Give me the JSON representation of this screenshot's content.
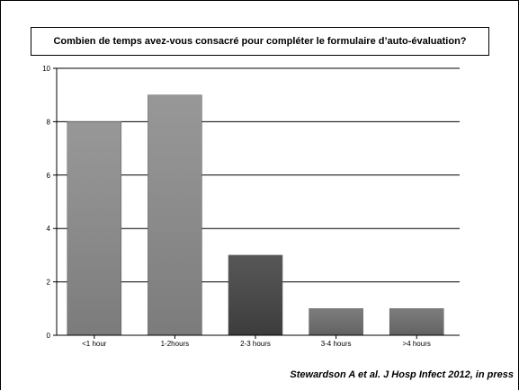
{
  "chart_data": {
    "type": "bar",
    "title": "Combien de temps avez-vous consacré pour compléter le formulaire d’auto-évaluation?",
    "categories": [
      "<1 hour",
      "1-2hours",
      "2-3 hours",
      "3-4 hours",
      ">4 hours"
    ],
    "values": [
      8,
      9,
      3,
      1,
      1
    ],
    "bar_colors": [
      "#8c8c8c",
      "#8c8c8c",
      "#444444",
      "#6e6e6e",
      "#6e6e6e"
    ],
    "ylim": [
      0,
      10
    ],
    "yticks": [
      0,
      2,
      4,
      6,
      8,
      10
    ],
    "grid": true,
    "xlabel": "",
    "ylabel": ""
  },
  "citation": "Stewardson A et al. J Hosp Infect 2012, in press"
}
